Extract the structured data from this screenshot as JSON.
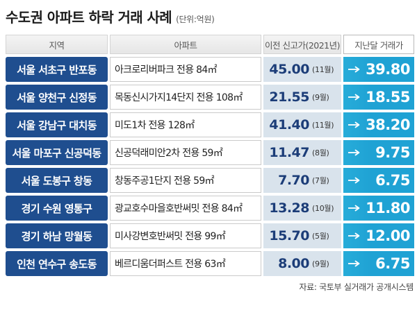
{
  "colors": {
    "region_bg": "#1f4e8f",
    "apartment_bg": "#ffffff",
    "prev_high_bg": "#d9e3ec",
    "prev_high_text": "#1c3d78",
    "last_price_bg": "#1fa2d4",
    "last_price_text": "#ffffff",
    "header_bg": "#e6e6e6"
  },
  "icons": {
    "change_arrow": "right-arrow-icon"
  },
  "chart_data": {
    "type": "table",
    "title": "수도권 아파트 하락 거래 사례",
    "unit": "(단위:억원)",
    "columns": [
      "지역",
      "아파트",
      "이전 신고가(2021년)",
      "지난달 거래가"
    ],
    "rows": [
      {
        "region": "서울 서초구 반포동",
        "apartment": "아크로리버파크 전용 84㎡",
        "prev_high": 45.0,
        "prev_high_month": "(11월)",
        "last_price": 39.8
      },
      {
        "region": "서울 양천구 신정동",
        "apartment": "목동신시가지14단지 전용 108㎡",
        "prev_high": 21.55,
        "prev_high_month": "(9월)",
        "last_price": 18.55
      },
      {
        "region": "서울 강남구 대치동",
        "apartment": "미도1차 전용 128㎡",
        "prev_high": 41.4,
        "prev_high_month": "(11월)",
        "last_price": 38.2
      },
      {
        "region": "서울 마포구 신공덕동",
        "apartment": "신공덕래미안2차 전용 59㎡",
        "prev_high": 11.47,
        "prev_high_month": "(8월)",
        "last_price": 9.75
      },
      {
        "region": "서울 도봉구 창동",
        "apartment": "창동주공1단지 전용 59㎡",
        "prev_high": 7.7,
        "prev_high_month": "(7월)",
        "last_price": 6.75
      },
      {
        "region": "경기 수원 영통구",
        "apartment": "광교호수마을호반써밋 전용 84㎡",
        "prev_high": 13.28,
        "prev_high_month": "(10월)",
        "last_price": 11.8
      },
      {
        "region": "경기 하남 망월동",
        "apartment": "미사강변호반써밋 전용 99㎡",
        "prev_high": 15.7,
        "prev_high_month": "(5월)",
        "last_price": 12.0
      },
      {
        "region": "인천 연수구 송도동",
        "apartment": "베르디움더퍼스트 전용 63㎡",
        "prev_high": 8.0,
        "prev_high_month": "(9월)",
        "last_price": 6.75
      }
    ],
    "source": "자료: 국토부 실거래가 공개시스템"
  }
}
